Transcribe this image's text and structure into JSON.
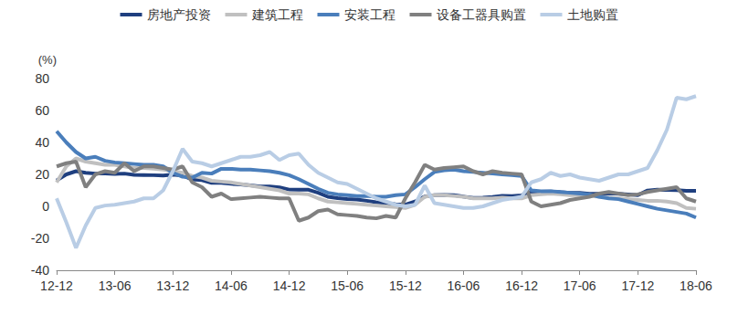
{
  "chart_data": {
    "type": "line",
    "ylabel": "(%)",
    "categories": [
      "12-12",
      null,
      null,
      null,
      null,
      null,
      "13-06",
      null,
      null,
      null,
      null,
      null,
      "13-12",
      null,
      null,
      null,
      null,
      null,
      "14-06",
      null,
      null,
      null,
      null,
      null,
      "14-12",
      null,
      null,
      null,
      null,
      null,
      "15-06",
      null,
      null,
      null,
      null,
      null,
      "15-12",
      null,
      null,
      null,
      null,
      null,
      "16-06",
      null,
      null,
      null,
      null,
      null,
      "16-12",
      null,
      null,
      null,
      null,
      null,
      "17-06",
      null,
      null,
      null,
      null,
      null,
      "17-12",
      null,
      null,
      null,
      null,
      null,
      "18-06"
    ],
    "series": [
      {
        "name": "房地产投资",
        "color": "#1f3f7f",
        "values": [
          16.2,
          20,
          22,
          21,
          20.5,
          20.6,
          20.3,
          20.5,
          19.7,
          19.6,
          19.5,
          19.3,
          19.8,
          19.3,
          16.8,
          16.4,
          14.7,
          14.7,
          14.1,
          13.7,
          13.2,
          12.5,
          12.4,
          11.9,
          10.5,
          10.4,
          10.4,
          8.5,
          6.0,
          5.1,
          4.6,
          4.3,
          3.5,
          2.6,
          2.0,
          1.3,
          1.0,
          3.0,
          6.2,
          7.0,
          7.2,
          7.0,
          6.1,
          5.3,
          5.4,
          5.8,
          6.6,
          6.5,
          6.9,
          8.9,
          9.1,
          9.3,
          8.8,
          8.5,
          8.5,
          7.9,
          7.8,
          8.1,
          7.8,
          7.5,
          7.0,
          9.9,
          10.4,
          10.3,
          10.2,
          9.7,
          9.7
        ]
      },
      {
        "name": "建筑工程",
        "color": "#c0c0c0",
        "values": [
          15,
          25,
          30,
          28,
          27,
          26,
          26,
          25,
          24,
          24,
          23.5,
          23,
          22,
          21,
          19,
          18,
          16,
          15.5,
          15,
          14,
          13,
          12,
          11,
          10,
          8,
          8,
          7.5,
          5,
          3,
          2.5,
          2,
          1.5,
          1,
          0.5,
          0,
          -0.5,
          -1,
          1,
          6,
          7,
          7,
          6.5,
          6,
          5,
          5,
          5,
          5.5,
          5,
          5,
          7,
          7.5,
          8,
          7.5,
          7,
          7,
          6.5,
          6,
          5.5,
          5,
          4.5,
          4,
          3.5,
          3.5,
          3,
          2,
          -1,
          -1.5
        ]
      },
      {
        "name": "安装工程",
        "color": "#4a7ebb",
        "values": [
          47,
          40,
          34,
          30,
          31,
          28.5,
          27.5,
          27,
          26.5,
          26,
          26,
          25,
          21,
          18.5,
          18,
          21,
          20.5,
          23.5,
          23.5,
          23,
          23,
          22.5,
          22,
          21,
          19.5,
          17,
          14,
          11,
          8.5,
          7.5,
          7,
          6.5,
          6.5,
          6,
          6,
          7,
          7.5,
          12,
          17,
          21.5,
          22.5,
          23,
          22,
          21.5,
          21,
          20.5,
          20,
          19.5,
          19,
          10,
          9.5,
          9.5,
          9,
          8.5,
          8,
          7.5,
          6,
          5,
          4.5,
          3,
          1.5,
          0,
          -1.5,
          -2.5,
          -3.5,
          -4.5,
          -7
        ]
      },
      {
        "name": "设备工器具购置",
        "color": "#808080",
        "values": [
          25,
          27,
          28,
          12,
          20,
          22,
          21,
          27,
          22,
          25,
          25,
          24,
          23,
          25,
          15,
          12,
          6,
          8,
          4.5,
          5,
          5.5,
          6,
          5.5,
          5,
          5,
          -9,
          -7,
          -3,
          -2,
          -5,
          -5.5,
          -6,
          -7,
          -7.5,
          -6,
          -7,
          5,
          15,
          26,
          23,
          24,
          24.5,
          25,
          22,
          20,
          22,
          21,
          20.5,
          20,
          3,
          0,
          1,
          2,
          4,
          5,
          6,
          8,
          9,
          8,
          7,
          7.5,
          9,
          10,
          11,
          12,
          5,
          3
        ]
      },
      {
        "name": "土地购置",
        "color": "#b9cde5",
        "values": [
          5,
          -10,
          -26,
          -12,
          -1,
          0.5,
          1,
          2,
          3,
          5,
          5,
          10,
          22,
          36,
          28,
          27,
          25,
          27,
          29,
          31,
          31,
          32,
          34,
          29,
          32,
          33,
          26,
          21,
          18,
          15,
          14,
          11,
          8,
          5,
          3,
          1,
          0,
          1,
          13,
          2,
          1,
          0,
          -1,
          -1,
          0,
          2,
          4,
          5,
          6,
          15,
          17,
          21,
          19,
          20,
          18,
          17,
          16,
          18,
          20,
          20,
          22,
          24,
          35,
          48,
          68,
          67,
          69
        ]
      }
    ],
    "ylim": [
      -40,
      80
    ],
    "yticks": [
      -40,
      -20,
      0,
      20,
      40,
      60,
      80
    ],
    "grid": false,
    "legend": "top"
  }
}
